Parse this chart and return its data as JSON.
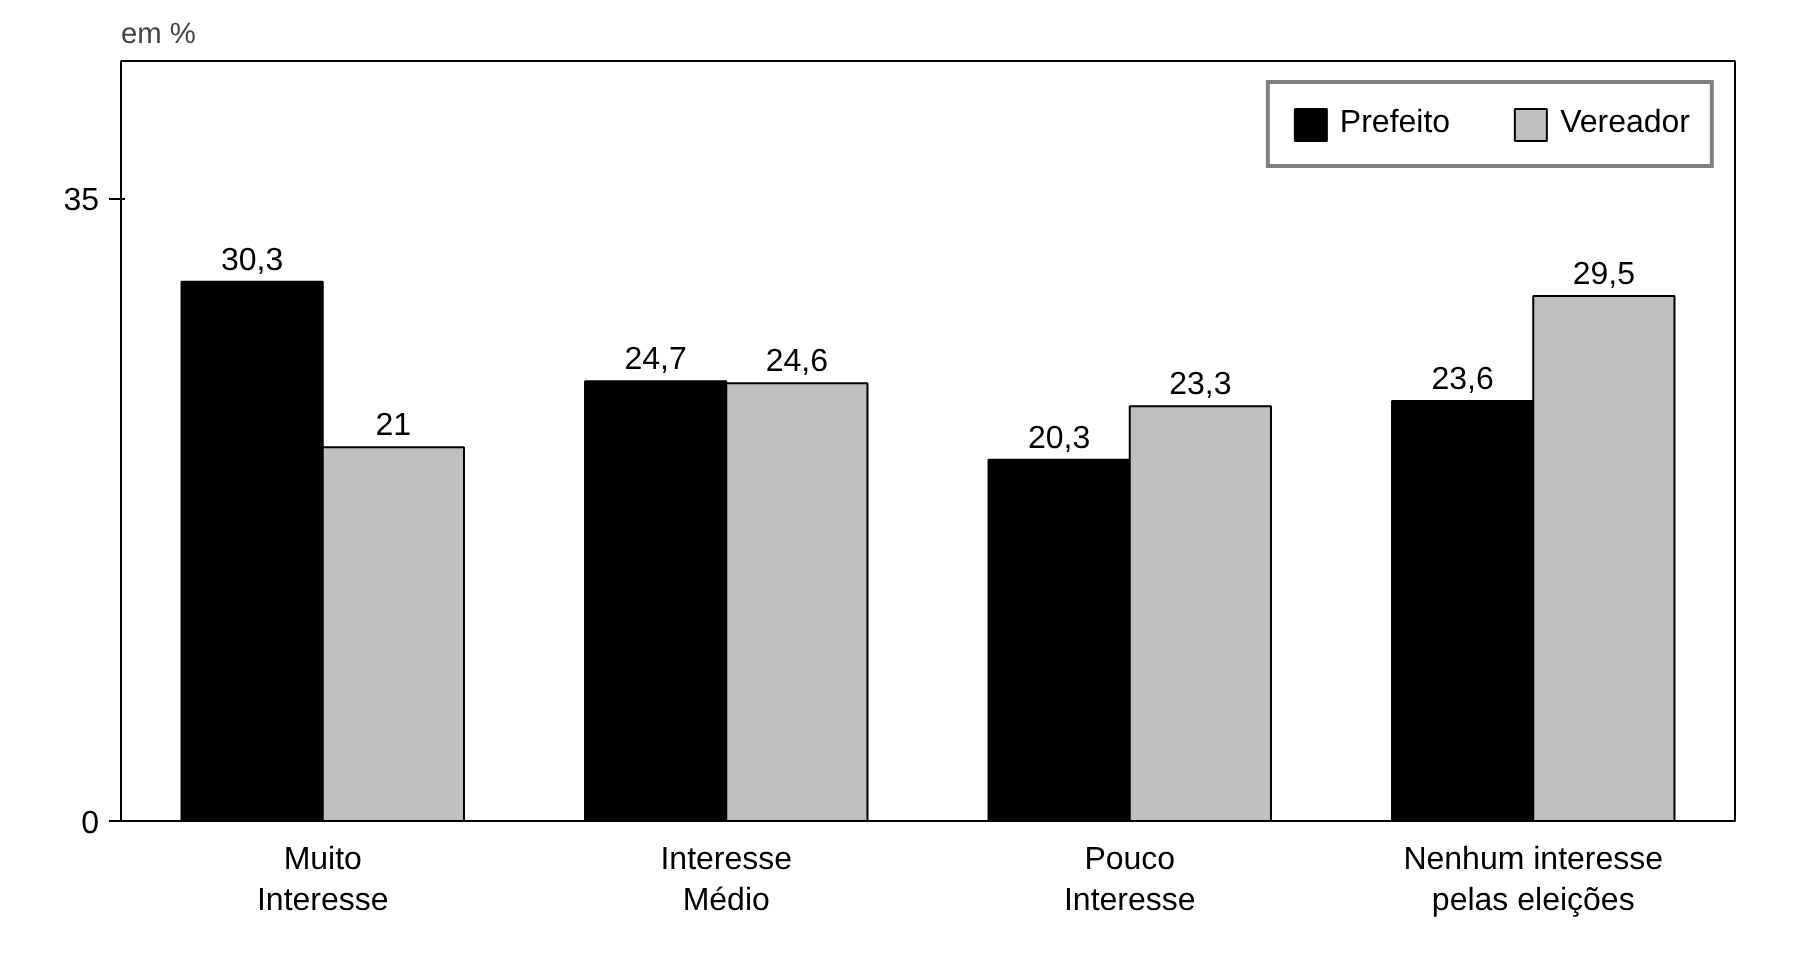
{
  "chart_data": {
    "type": "bar",
    "ylabel": "em %",
    "categories": [
      "Muito\nInteresse",
      "Interesse\nMédio",
      "Pouco\nInteresse",
      "Nenhum interesse\npelas eleições"
    ],
    "series": [
      {
        "name": "Prefeito",
        "color": "#000000",
        "values": [
          30.3,
          24.7,
          20.3,
          23.6
        ],
        "value_labels": [
          "30,3",
          "24,7",
          "20,3",
          "23,6"
        ]
      },
      {
        "name": "Vereador",
        "color": "#c0c0c0",
        "values": [
          21,
          24.6,
          23.3,
          29.5
        ],
        "value_labels": [
          "21",
          "24,6",
          "23,3",
          "29,5"
        ]
      }
    ],
    "ylim": [
      0,
      35
    ],
    "yticks": [
      0,
      35
    ],
    "grid": false,
    "legend": "top right"
  }
}
